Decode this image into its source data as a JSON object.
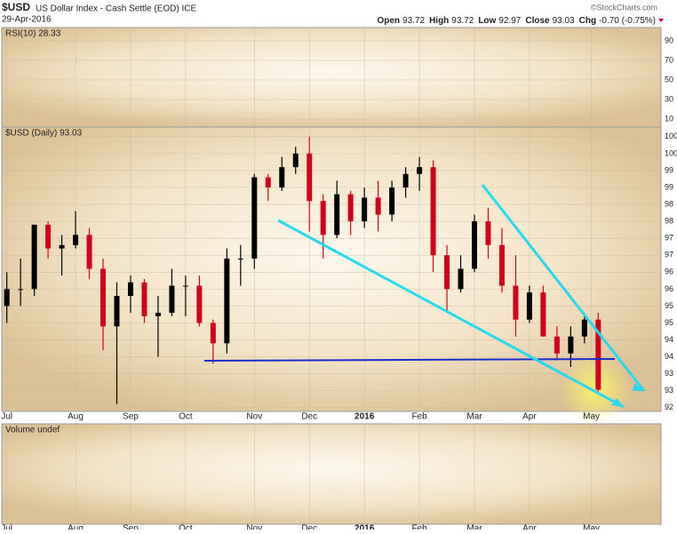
{
  "header": {
    "symbol": "$USD",
    "name": "US Dollar Index - Cash Settle (EOD) ICE",
    "date": "29-Apr-2016",
    "credit": "©StockCharts.com",
    "quote": [
      {
        "label": "Open",
        "value": 93.72
      },
      {
        "label": "High",
        "value": 93.72
      },
      {
        "label": "Low",
        "value": 92.97
      },
      {
        "label": "Close",
        "value": 93.03
      },
      {
        "label": "Chg",
        "value": "-0.70 (-0.75%)"
      }
    ]
  },
  "chart_data": {
    "type": "candlestick",
    "panels": {
      "rsi": "RSI(10) 28.33",
      "price": "$USD (Daily) 93.03",
      "volume": "Volume undef"
    },
    "up_color": "#000000",
    "down_color": "#d0021b",
    "xlim": [
      -0.3,
      47.5
    ],
    "xticks": [
      {
        "value": 0,
        "label": "Jul"
      },
      {
        "value": 5,
        "label": "Aug"
      },
      {
        "value": 9,
        "label": "Sep"
      },
      {
        "value": 13,
        "label": "Oct"
      },
      {
        "value": 18,
        "label": "Nov"
      },
      {
        "value": 22,
        "label": "Dec"
      },
      {
        "value": 26,
        "label": "2016"
      },
      {
        "value": 30,
        "label": "Feb"
      },
      {
        "value": 34,
        "label": "Mar"
      },
      {
        "value": 38,
        "label": "Apr"
      },
      {
        "value": 42.5,
        "label": "May"
      }
    ],
    "ylim": [
      92.6,
      100.6
    ],
    "yticks": [
      {
        "value": 100.5,
        "label": "100"
      },
      {
        "value": 100,
        "label": "100"
      },
      {
        "value": 99.5,
        "label": "99"
      },
      {
        "value": 99,
        "label": "99"
      },
      {
        "value": 98.5,
        "label": "98"
      },
      {
        "value": 98,
        "label": "98"
      },
      {
        "value": 97.5,
        "label": "97"
      },
      {
        "value": 97,
        "label": "97"
      },
      {
        "value": 96.5,
        "label": "96"
      },
      {
        "value": 96,
        "label": "96"
      },
      {
        "value": 95.5,
        "label": "95"
      },
      {
        "value": 95,
        "label": "95"
      },
      {
        "value": 94.5,
        "label": "94"
      },
      {
        "value": 94,
        "label": "94"
      },
      {
        "value": 93.5,
        "label": "93"
      },
      {
        "value": 93,
        "label": "93"
      },
      {
        "value": 92.5,
        "label": "92"
      }
    ],
    "rsi_ylim": [
      0,
      100
    ],
    "rsi_yticks": [
      90,
      70,
      50,
      30,
      10
    ],
    "open": [
      95.5,
      96.0,
      96.0,
      97.9,
      97.2,
      97.3,
      97.6,
      96.6,
      94.9,
      95.8,
      96.2,
      95.2,
      95.3,
      96.1,
      96.1,
      95.0,
      94.4,
      96.9,
      96.9,
      99.3,
      99.0,
      99.6,
      100.0,
      98.6,
      97.6,
      98.8,
      98.0,
      98.7,
      98.2,
      99.0,
      99.4,
      99.6,
      97.0,
      96.0,
      96.6,
      98.0,
      97.3,
      96.1,
      95.1,
      95.9,
      94.6,
      94.1,
      94.6,
      95.1
    ],
    "high": [
      96.5,
      96.9,
      97.9,
      98.0,
      97.6,
      98.3,
      97.8,
      96.9,
      96.2,
      96.4,
      96.3,
      95.8,
      96.6,
      96.4,
      96.4,
      95.1,
      97.2,
      97.3,
      99.4,
      99.4,
      99.9,
      100.2,
      100.5,
      98.8,
      99.2,
      98.9,
      99.0,
      99.2,
      99.2,
      99.6,
      99.9,
      99.8,
      97.3,
      97.0,
      98.2,
      98.4,
      97.8,
      97.0,
      96.1,
      96.1,
      94.9,
      94.9,
      95.3,
      95.3
    ],
    "low": [
      95.0,
      95.5,
      95.8,
      96.9,
      96.4,
      97.2,
      96.3,
      94.2,
      92.6,
      95.3,
      95.0,
      94.0,
      95.2,
      95.2,
      94.9,
      93.8,
      94.1,
      96.1,
      96.6,
      98.6,
      98.9,
      99.4,
      97.7,
      96.9,
      97.5,
      97.6,
      97.8,
      97.7,
      98.0,
      98.7,
      98.9,
      96.5,
      95.3,
      95.9,
      96.5,
      96.9,
      95.9,
      94.6,
      95.0,
      94.6,
      93.9,
      93.7,
      94.4,
      92.97
    ],
    "close": [
      96.0,
      96.0,
      97.9,
      97.2,
      97.3,
      97.6,
      96.6,
      94.9,
      95.8,
      96.2,
      95.2,
      95.3,
      96.1,
      96.1,
      95.0,
      94.4,
      96.9,
      96.9,
      99.3,
      99.0,
      99.6,
      100.0,
      98.6,
      97.6,
      98.8,
      98.0,
      98.7,
      98.2,
      99.0,
      99.4,
      99.6,
      97.0,
      96.0,
      96.6,
      98.0,
      97.3,
      96.1,
      95.1,
      95.9,
      94.6,
      94.1,
      94.6,
      95.1,
      93.03
    ]
  }
}
